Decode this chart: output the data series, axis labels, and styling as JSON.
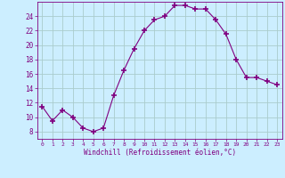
{
  "x": [
    0,
    1,
    2,
    3,
    4,
    5,
    6,
    7,
    8,
    9,
    10,
    11,
    12,
    13,
    14,
    15,
    16,
    17,
    18,
    19,
    20,
    21,
    22,
    23
  ],
  "y": [
    11.5,
    9.5,
    11.0,
    10.0,
    8.5,
    8.0,
    8.5,
    13.0,
    16.5,
    19.5,
    22.0,
    23.5,
    24.0,
    25.5,
    25.5,
    25.0,
    25.0,
    23.5,
    21.5,
    18.0,
    15.5,
    15.5,
    15.0,
    14.5
  ],
  "line_color": "#800080",
  "marker": "+",
  "marker_size": 4,
  "bg_color": "#cceeff",
  "grid_color": "#aacccc",
  "xlabel": "Windchill (Refroidissement éolien,°C)",
  "xlabel_color": "#800080",
  "tick_color": "#800080",
  "ylim": [
    7,
    26
  ],
  "yticks": [
    8,
    10,
    12,
    14,
    16,
    18,
    20,
    22,
    24
  ],
  "xlim": [
    -0.5,
    23.5
  ],
  "xticks": [
    0,
    1,
    2,
    3,
    4,
    5,
    6,
    7,
    8,
    9,
    10,
    11,
    12,
    13,
    14,
    15,
    16,
    17,
    18,
    19,
    20,
    21,
    22,
    23
  ]
}
